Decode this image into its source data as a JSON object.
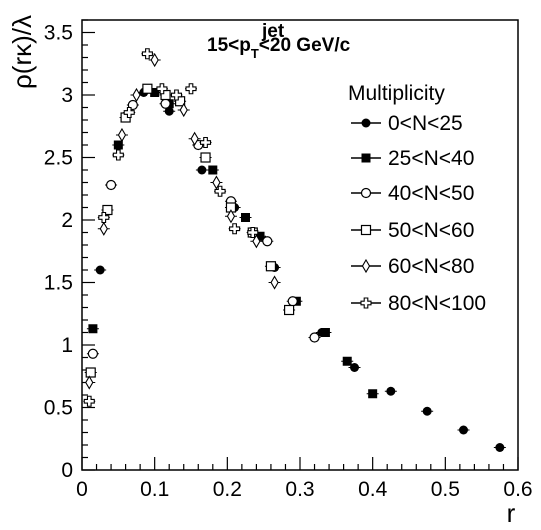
{
  "chart_data": {
    "type": "scatter",
    "title_parts": {
      "prefix": "15<p",
      "sub": "T",
      "sup": "jet",
      "suffix": "<20 GeV/c"
    },
    "xlabel": "r",
    "ylabel": "ρ(rκ)/λ",
    "xlim": [
      0,
      0.6
    ],
    "ylim": [
      0,
      3.6
    ],
    "x_ticks": [
      "0",
      "0.1",
      "0.2",
      "0.3",
      "0.4",
      "0.5",
      "0.6"
    ],
    "y_ticks": [
      "0",
      "0.5",
      "1",
      "1.5",
      "2",
      "2.5",
      "3",
      "3.5"
    ],
    "legend_title": "Multiplicity",
    "legend_placement": "right",
    "grid": false,
    "series": [
      {
        "name": "0<N<25",
        "marker": "filled-circle",
        "points": [
          [
            0.025,
            1.6
          ],
          [
            0.085,
            3.02
          ],
          [
            0.12,
            2.87
          ],
          [
            0.165,
            2.4
          ],
          [
            0.21,
            2.1
          ],
          [
            0.265,
            1.62
          ],
          [
            0.33,
            1.1
          ],
          [
            0.375,
            0.82
          ],
          [
            0.425,
            0.63
          ],
          [
            0.475,
            0.47
          ],
          [
            0.525,
            0.32
          ],
          [
            0.575,
            0.18
          ]
        ]
      },
      {
        "name": "25<N<40",
        "marker": "filled-square",
        "points": [
          [
            0.015,
            1.13
          ],
          [
            0.05,
            2.6
          ],
          [
            0.1,
            3.02
          ],
          [
            0.12,
            2.93
          ],
          [
            0.18,
            2.4
          ],
          [
            0.225,
            2.02
          ],
          [
            0.245,
            1.87
          ],
          [
            0.295,
            1.35
          ],
          [
            0.335,
            1.1
          ],
          [
            0.365,
            0.87
          ],
          [
            0.4,
            0.61
          ]
        ]
      },
      {
        "name": "40<N<50",
        "marker": "open-circle",
        "points": [
          [
            0.015,
            0.93
          ],
          [
            0.04,
            2.28
          ],
          [
            0.07,
            2.92
          ],
          [
            0.115,
            2.93
          ],
          [
            0.16,
            2.6
          ],
          [
            0.205,
            2.15
          ],
          [
            0.255,
            1.83
          ],
          [
            0.29,
            1.35
          ],
          [
            0.32,
            1.06
          ]
        ]
      },
      {
        "name": "50<N<60",
        "marker": "open-square",
        "points": [
          [
            0.012,
            0.78
          ],
          [
            0.035,
            2.08
          ],
          [
            0.06,
            2.82
          ],
          [
            0.09,
            3.05
          ],
          [
            0.115,
            3.0
          ],
          [
            0.135,
            2.95
          ],
          [
            0.17,
            2.5
          ],
          [
            0.205,
            2.1
          ],
          [
            0.235,
            1.9
          ],
          [
            0.26,
            1.63
          ],
          [
            0.285,
            1.28
          ]
        ]
      },
      {
        "name": "60<N<80",
        "marker": "open-diamond",
        "points": [
          [
            0.01,
            0.7
          ],
          [
            0.03,
            1.93
          ],
          [
            0.055,
            2.68
          ],
          [
            0.075,
            3.0
          ],
          [
            0.1,
            3.28
          ],
          [
            0.14,
            2.88
          ],
          [
            0.155,
            2.65
          ],
          [
            0.185,
            2.3
          ],
          [
            0.205,
            2.03
          ],
          [
            0.24,
            1.83
          ],
          [
            0.265,
            1.5
          ]
        ]
      },
      {
        "name": "80<N<100",
        "marker": "open-cross",
        "points": [
          [
            0.01,
            0.55
          ],
          [
            0.03,
            2.02
          ],
          [
            0.05,
            2.52
          ],
          [
            0.065,
            2.86
          ],
          [
            0.09,
            3.33
          ],
          [
            0.11,
            3.05
          ],
          [
            0.13,
            3.0
          ],
          [
            0.15,
            3.05
          ],
          [
            0.17,
            2.62
          ],
          [
            0.19,
            2.23
          ],
          [
            0.21,
            1.93
          ],
          [
            0.235,
            1.9
          ]
        ]
      }
    ]
  }
}
